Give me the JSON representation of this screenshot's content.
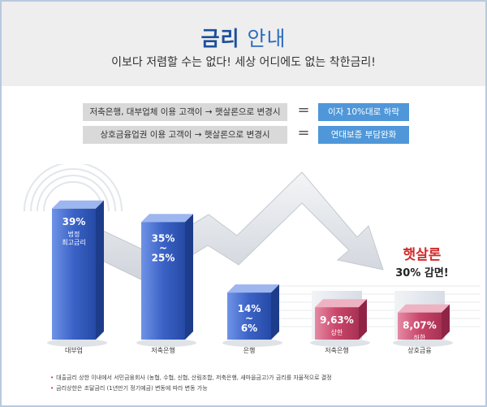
{
  "header": {
    "title_strong": "금리",
    "title_light": "안내",
    "subtitle": "이보다 저렴할 수는 없다! 세상 어디에도 없는 착한금리!"
  },
  "comparisons": [
    {
      "label": "저축은행, 대부업체 이용 고객이 → 햇살론으로 변경시",
      "equals": "=",
      "result": "이자 10%대로 하락"
    },
    {
      "label": "상호금융업권 이용 고객이 → 햇살론으로 변경시",
      "equals": "=",
      "result": "연대보증 부담완화"
    }
  ],
  "chart_data": {
    "type": "bar",
    "categories": [
      "대부업",
      "저축은행",
      "은행",
      "저축은행",
      "상호금융"
    ],
    "values": [
      39,
      35,
      14,
      9.63,
      8.07
    ],
    "range_lower": [
      null,
      25,
      6,
      null,
      null
    ],
    "bar_labels": [
      "39%",
      "35%\n~\n25%",
      "14%\n~\n6%",
      "9,63%",
      "8,07%"
    ],
    "bar_sublabels": [
      "법정\n최고금리",
      "",
      "",
      "상한",
      "하한"
    ],
    "bar_colors": [
      "#3b62c4",
      "#3b62c4",
      "#3b62c4",
      "#c9466a",
      "#c9466a"
    ],
    "annotation_title": "햇살론",
    "annotation_text": "30% 감면!",
    "ylim": [
      0,
      45
    ],
    "grid": false
  },
  "notes": [
    "대출금리 상한 이내에서 서민금융회사 (농협, 수협, 신협, 산림조합, 저축은행, 새마을금고)가 금리를 자율적으로 결정",
    "금리상한은 조달금리 (1년만기 정기예금) 변동에 따라 변동 가능"
  ],
  "colors": {
    "accent": "#1b4f9c",
    "result_bg": "#4f97d9",
    "label_bg": "#d9d9d9",
    "annotation_red": "#d22c2c"
  }
}
